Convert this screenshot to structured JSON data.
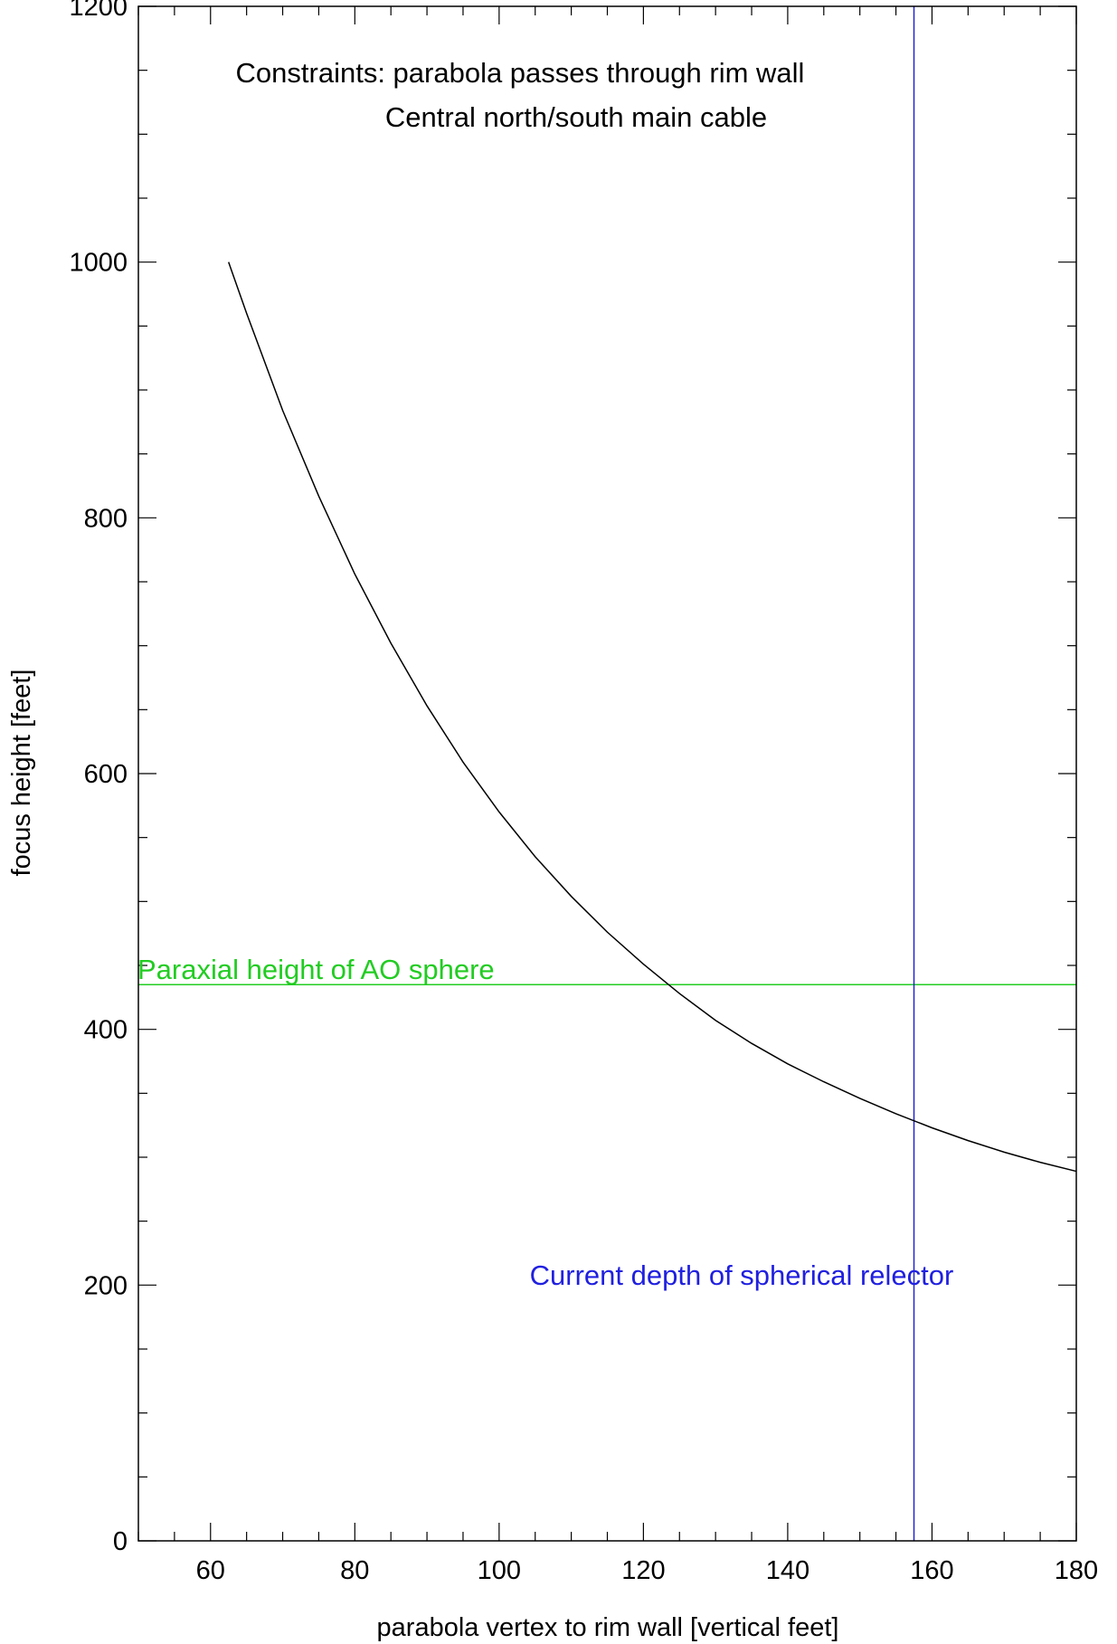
{
  "chart_data": {
    "type": "line",
    "xlabel": "parabola vertex to rim wall [vertical feet]",
    "ylabel": "focus height [feet]",
    "xlim": [
      50,
      180
    ],
    "ylim": [
      0,
      1200
    ],
    "xticks": [
      60,
      80,
      100,
      120,
      140,
      160,
      180
    ],
    "yticks": [
      0,
      200,
      400,
      600,
      800,
      1000,
      1200
    ],
    "xminor_step": 5,
    "yminor_step": 50,
    "grid": false,
    "series": [
      {
        "color": "#000000",
        "x": [
          62.5,
          65,
          70,
          75,
          80,
          85,
          90,
          95,
          100,
          105,
          110,
          115,
          120,
          125,
          130,
          135,
          140,
          145,
          150,
          155,
          160,
          165,
          170,
          175,
          180
        ],
        "y": [
          1000,
          960,
          884,
          817,
          756,
          702,
          653,
          609,
          570,
          535,
          504,
          476,
          451,
          428,
          407,
          389,
          373,
          359,
          346,
          334,
          323,
          313,
          304,
          296,
          289
        ]
      }
    ],
    "reference_lines": [
      {
        "orientation": "horizontal",
        "value": 435,
        "color": "#22cc22",
        "label": "Paraxial height of AO sphere"
      },
      {
        "orientation": "vertical",
        "value": 157.5,
        "color": "#2020e0",
        "label": "Current depth of spherical relector"
      }
    ],
    "annotations": [
      "Constraints: parabola passes through rim wall",
      "Central north/south main cable"
    ]
  }
}
